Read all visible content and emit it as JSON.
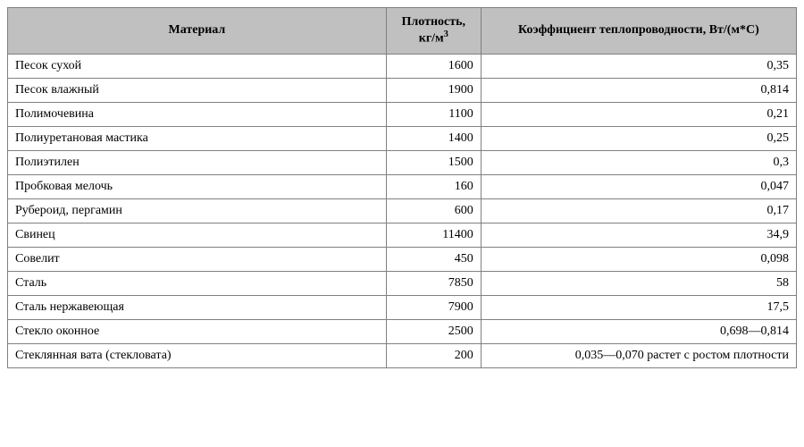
{
  "table": {
    "columns": [
      {
        "label_html": "Материал",
        "key": "material",
        "align": "left",
        "width": "48%"
      },
      {
        "label_html": "Плотность, кг/м<sup>3</sup>",
        "key": "density",
        "align": "right",
        "width": "12%"
      },
      {
        "label_html": "Коэффициент теплопроводности, Вт/(м*С)",
        "key": "conduct",
        "align": "right",
        "width": "40%"
      }
    ],
    "rows": [
      {
        "material": "Песок сухой",
        "density": "1600",
        "conduct": "0,35"
      },
      {
        "material": "Песок влажный",
        "density": "1900",
        "conduct": "0,814"
      },
      {
        "material": "Полимочевина",
        "density": "1100",
        "conduct": "0,21"
      },
      {
        "material": "Полиуретановая мастика",
        "density": "1400",
        "conduct": "0,25"
      },
      {
        "material": "Полиэтилен",
        "density": "1500",
        "conduct": "0,3"
      },
      {
        "material": "Пробковая мелочь",
        "density": "160",
        "conduct": "0,047"
      },
      {
        "material": "Рубероид, пергамин",
        "density": "600",
        "conduct": "0,17"
      },
      {
        "material": "Свинец",
        "density": "11400",
        "conduct": "34,9"
      },
      {
        "material": "Совелит",
        "density": "450",
        "conduct": "0,098"
      },
      {
        "material": "Сталь",
        "density": "7850",
        "conduct": "58"
      },
      {
        "material": "Сталь нержавеющая",
        "density": "7900",
        "conduct": "17,5"
      },
      {
        "material": "Стекло оконное",
        "density": "2500",
        "conduct": "0,698—0,814"
      },
      {
        "material": "Стеклянная вата (стекловата)",
        "density": "200",
        "conduct": "0,035—0,070 растет с ростом плотности"
      }
    ],
    "header_bg": "#c0c0c0",
    "border_color": "#808080",
    "font_family": "Times New Roman",
    "font_size_pt": 14
  }
}
